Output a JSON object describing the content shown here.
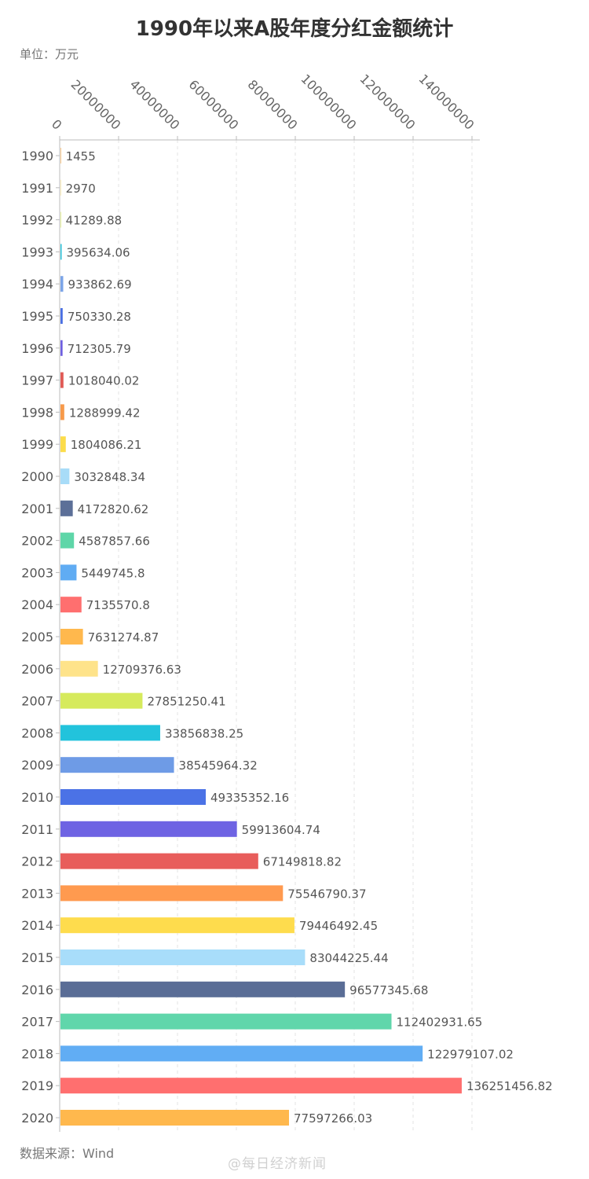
{
  "title": "1990年以来A股年度分红金额统计",
  "unit_label": "单位：万元",
  "source_label": "数据来源：Wind",
  "watermark": "@每日经济新闻",
  "chart_data": {
    "type": "bar",
    "orientation": "horizontal",
    "title": "1990年以来A股年度分红金额统计",
    "unit": "万元",
    "categories": [
      "1990",
      "1991",
      "1992",
      "1993",
      "1994",
      "1995",
      "1996",
      "1997",
      "1998",
      "1999",
      "2000",
      "2001",
      "2002",
      "2003",
      "2004",
      "2005",
      "2006",
      "2007",
      "2008",
      "2009",
      "2010",
      "2011",
      "2012",
      "2013",
      "2014",
      "2015",
      "2016",
      "2017",
      "2018",
      "2019",
      "2020"
    ],
    "value_labels": [
      "1455",
      "2970",
      "41289.88",
      "395634.06",
      "933862.69",
      "750330.28",
      "712305.79",
      "1018040.02",
      "1288999.42",
      "1804086.21",
      "3032848.34",
      "4172820.62",
      "4587857.66",
      "5449745.8",
      "7135570.8",
      "7631274.87",
      "12709376.63",
      "27851250.41",
      "33856838.25",
      "38545964.32",
      "49335352.16",
      "59913604.74",
      "67149818.82",
      "75546790.37",
      "79446492.45",
      "83044225.44",
      "96577345.68",
      "112402931.65",
      "122979107.02",
      "136251456.82",
      "77597266.03"
    ],
    "values": [
      1455,
      2970,
      41289.88,
      395634.06,
      933862.69,
      750330.28,
      712305.79,
      1018040.02,
      1288999.42,
      1804086.21,
      3032848.34,
      4172820.62,
      4587857.66,
      5449745.8,
      7135570.8,
      7631274.87,
      12709376.63,
      27851250.41,
      33856838.25,
      38545964.32,
      49335352.16,
      59913604.74,
      67149818.82,
      75546790.37,
      79446492.45,
      83044225.44,
      96577345.68,
      112402931.65,
      122979107.02,
      136251456.82,
      77597266.03
    ],
    "value_axis_ticks": [
      "0",
      "20000000",
      "40000000",
      "60000000",
      "80000000",
      "100000000",
      "120000000",
      "140000000"
    ],
    "xlim": [
      0,
      140000000
    ],
    "value_axis_position": "top",
    "grid": true,
    "colors": [
      "#f5a33c",
      "#fde68a",
      "#d4ea58",
      "#26c0d8",
      "#7ba4e8",
      "#4a6fe3",
      "#6e5fe0",
      "#e05a55",
      "#f79a4a",
      "#fcdc4a",
      "#a8dcf8",
      "#5c6f98",
      "#5ed6a8",
      "#60acf3",
      "#ff6f6f",
      "#ffb84d",
      "#fee38a",
      "#d6ea5c",
      "#22c3dc",
      "#6e9be6",
      "#4b72e6",
      "#6e63e3",
      "#e85d5b",
      "#ff9a4f",
      "#fedc4d",
      "#a8ddfa",
      "#5a6d96",
      "#60d6ab",
      "#61adf4",
      "#ff6f6f",
      "#ffb84d"
    ]
  }
}
